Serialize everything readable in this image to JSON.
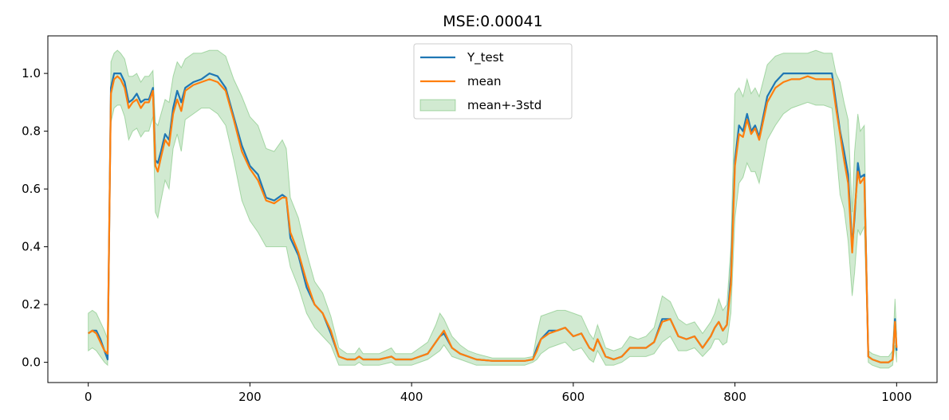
{
  "chart_data": {
    "type": "line",
    "title": "MSE:0.00041",
    "xlabel": "",
    "ylabel": "",
    "xlim": [
      -50,
      1050
    ],
    "ylim": [
      -0.07,
      1.13
    ],
    "x_ticks": [
      0,
      200,
      400,
      600,
      800,
      1000
    ],
    "x_tick_labels": [
      "0",
      "200",
      "400",
      "600",
      "800",
      "1000"
    ],
    "y_ticks": [
      0.0,
      0.2,
      0.4,
      0.6,
      0.8,
      1.0
    ],
    "y_tick_labels": [
      "0.0",
      "0.2",
      "0.4",
      "0.6",
      "0.8",
      "1.0"
    ],
    "grid": false,
    "legend_position": "top-center",
    "x": [
      0,
      5,
      10,
      15,
      20,
      24,
      28,
      32,
      36,
      40,
      45,
      50,
      55,
      60,
      65,
      70,
      75,
      80,
      83,
      86,
      90,
      95,
      100,
      105,
      110,
      115,
      120,
      130,
      140,
      150,
      160,
      170,
      180,
      190,
      200,
      210,
      220,
      230,
      240,
      245,
      250,
      260,
      270,
      280,
      290,
      300,
      310,
      320,
      330,
      335,
      340,
      360,
      375,
      380,
      400,
      410,
      420,
      430,
      435,
      440,
      450,
      460,
      470,
      480,
      500,
      540,
      550,
      555,
      560,
      570,
      580,
      590,
      600,
      610,
      620,
      625,
      630,
      640,
      650,
      660,
      670,
      680,
      690,
      700,
      710,
      720,
      730,
      740,
      750,
      760,
      770,
      775,
      780,
      785,
      790,
      795,
      800,
      805,
      810,
      815,
      820,
      825,
      830,
      840,
      850,
      860,
      870,
      880,
      890,
      900,
      910,
      920,
      925,
      930,
      935,
      940,
      945,
      948,
      952,
      955,
      960,
      965,
      970,
      980,
      990,
      995,
      998,
      1000
    ],
    "series": [
      {
        "name": "Y_test",
        "color": "#1f77b4",
        "values": [
          0.1,
          0.11,
          0.11,
          0.08,
          0.04,
          0.01,
          0.95,
          1.0,
          1.0,
          1.0,
          0.97,
          0.9,
          0.91,
          0.93,
          0.9,
          0.91,
          0.91,
          0.95,
          0.7,
          0.69,
          0.73,
          0.79,
          0.77,
          0.88,
          0.94,
          0.9,
          0.95,
          0.97,
          0.98,
          1.0,
          0.99,
          0.95,
          0.85,
          0.75,
          0.68,
          0.65,
          0.57,
          0.56,
          0.58,
          0.57,
          0.43,
          0.37,
          0.26,
          0.2,
          0.17,
          0.1,
          0.02,
          0.01,
          0.01,
          0.02,
          0.01,
          0.01,
          0.02,
          0.01,
          0.01,
          0.02,
          0.03,
          0.07,
          0.09,
          0.1,
          0.05,
          0.03,
          0.02,
          0.01,
          0.005,
          0.005,
          0.01,
          0.05,
          0.08,
          0.11,
          0.11,
          0.12,
          0.09,
          0.1,
          0.05,
          0.04,
          0.08,
          0.02,
          0.01,
          0.02,
          0.05,
          0.05,
          0.05,
          0.07,
          0.15,
          0.15,
          0.09,
          0.08,
          0.09,
          0.05,
          0.09,
          0.12,
          0.14,
          0.11,
          0.13,
          0.3,
          0.7,
          0.82,
          0.8,
          0.86,
          0.8,
          0.82,
          0.78,
          0.92,
          0.97,
          1.0,
          1.0,
          1.0,
          1.0,
          1.0,
          1.0,
          1.0,
          0.9,
          0.8,
          0.73,
          0.65,
          0.4,
          0.5,
          0.69,
          0.64,
          0.65,
          0.02,
          0.01,
          0.0,
          0.0,
          0.01,
          0.15,
          0.04
        ]
      },
      {
        "name": "mean",
        "color": "#ff7f0e",
        "values": [
          0.1,
          0.11,
          0.1,
          0.07,
          0.04,
          0.03,
          0.93,
          0.98,
          0.99,
          0.98,
          0.95,
          0.88,
          0.9,
          0.91,
          0.88,
          0.9,
          0.9,
          0.94,
          0.68,
          0.66,
          0.71,
          0.77,
          0.75,
          0.86,
          0.91,
          0.87,
          0.94,
          0.96,
          0.97,
          0.98,
          0.97,
          0.94,
          0.84,
          0.73,
          0.67,
          0.63,
          0.56,
          0.55,
          0.57,
          0.57,
          0.45,
          0.38,
          0.28,
          0.2,
          0.17,
          0.11,
          0.02,
          0.01,
          0.01,
          0.02,
          0.01,
          0.01,
          0.02,
          0.01,
          0.01,
          0.02,
          0.03,
          0.07,
          0.09,
          0.11,
          0.05,
          0.03,
          0.02,
          0.01,
          0.005,
          0.005,
          0.01,
          0.04,
          0.08,
          0.1,
          0.11,
          0.12,
          0.09,
          0.1,
          0.05,
          0.04,
          0.08,
          0.02,
          0.01,
          0.02,
          0.05,
          0.05,
          0.05,
          0.07,
          0.14,
          0.15,
          0.09,
          0.08,
          0.09,
          0.05,
          0.09,
          0.12,
          0.14,
          0.11,
          0.13,
          0.27,
          0.68,
          0.79,
          0.78,
          0.84,
          0.79,
          0.81,
          0.77,
          0.9,
          0.95,
          0.97,
          0.98,
          0.98,
          0.99,
          0.98,
          0.98,
          0.98,
          0.88,
          0.79,
          0.7,
          0.62,
          0.38,
          0.52,
          0.66,
          0.62,
          0.64,
          0.02,
          0.01,
          0.0,
          0.0,
          0.01,
          0.14,
          0.05
        ]
      }
    ],
    "band": {
      "name": "mean+-3std",
      "fill_color": "#2ca02c",
      "fill_opacity": 0.22,
      "upper": [
        0.17,
        0.18,
        0.17,
        0.14,
        0.11,
        0.08,
        1.04,
        1.07,
        1.08,
        1.07,
        1.05,
        0.99,
        0.99,
        1.0,
        0.97,
        0.99,
        0.99,
        1.01,
        0.83,
        0.82,
        0.86,
        0.91,
        0.9,
        0.99,
        1.04,
        1.02,
        1.05,
        1.07,
        1.07,
        1.08,
        1.08,
        1.06,
        0.98,
        0.92,
        0.85,
        0.82,
        0.74,
        0.73,
        0.77,
        0.74,
        0.57,
        0.5,
        0.38,
        0.28,
        0.24,
        0.16,
        0.05,
        0.03,
        0.03,
        0.05,
        0.03,
        0.03,
        0.05,
        0.03,
        0.03,
        0.05,
        0.07,
        0.13,
        0.17,
        0.15,
        0.09,
        0.06,
        0.04,
        0.03,
        0.015,
        0.015,
        0.02,
        0.1,
        0.16,
        0.17,
        0.18,
        0.18,
        0.17,
        0.16,
        0.1,
        0.08,
        0.13,
        0.05,
        0.04,
        0.05,
        0.09,
        0.08,
        0.09,
        0.12,
        0.23,
        0.21,
        0.15,
        0.13,
        0.14,
        0.1,
        0.14,
        0.17,
        0.22,
        0.18,
        0.2,
        0.4,
        0.93,
        0.95,
        0.92,
        0.98,
        0.93,
        0.95,
        0.92,
        1.03,
        1.06,
        1.07,
        1.07,
        1.07,
        1.07,
        1.08,
        1.07,
        1.07,
        1.0,
        0.97,
        0.9,
        0.84,
        0.52,
        0.73,
        0.86,
        0.8,
        0.82,
        0.04,
        0.03,
        0.02,
        0.02,
        0.04,
        0.22,
        0.1
      ],
      "lower": [
        0.04,
        0.05,
        0.04,
        0.02,
        0.0,
        -0.01,
        0.83,
        0.88,
        0.89,
        0.89,
        0.85,
        0.77,
        0.8,
        0.81,
        0.78,
        0.8,
        0.8,
        0.85,
        0.52,
        0.5,
        0.56,
        0.63,
        0.6,
        0.74,
        0.79,
        0.73,
        0.84,
        0.86,
        0.88,
        0.88,
        0.86,
        0.82,
        0.7,
        0.56,
        0.49,
        0.45,
        0.4,
        0.4,
        0.4,
        0.4,
        0.33,
        0.26,
        0.17,
        0.12,
        0.09,
        0.06,
        -0.01,
        -0.01,
        -0.01,
        0.0,
        -0.01,
        -0.01,
        0.0,
        -0.01,
        -0.01,
        0.0,
        0.01,
        0.03,
        0.04,
        0.06,
        0.02,
        0.01,
        0.0,
        -0.01,
        -0.01,
        -0.01,
        0.0,
        0.01,
        0.03,
        0.05,
        0.06,
        0.07,
        0.04,
        0.05,
        0.01,
        0.0,
        0.04,
        -0.01,
        -0.01,
        0.0,
        0.02,
        0.02,
        0.02,
        0.03,
        0.07,
        0.09,
        0.04,
        0.04,
        0.05,
        0.02,
        0.05,
        0.08,
        0.08,
        0.06,
        0.07,
        0.17,
        0.5,
        0.62,
        0.64,
        0.69,
        0.66,
        0.66,
        0.62,
        0.77,
        0.82,
        0.86,
        0.88,
        0.89,
        0.9,
        0.89,
        0.89,
        0.88,
        0.74,
        0.58,
        0.53,
        0.42,
        0.23,
        0.31,
        0.46,
        0.44,
        0.47,
        0.0,
        -0.01,
        -0.02,
        -0.02,
        -0.01,
        0.06,
        0.0
      ]
    },
    "legend": [
      "Y_test",
      "mean",
      "mean+-3std"
    ]
  }
}
